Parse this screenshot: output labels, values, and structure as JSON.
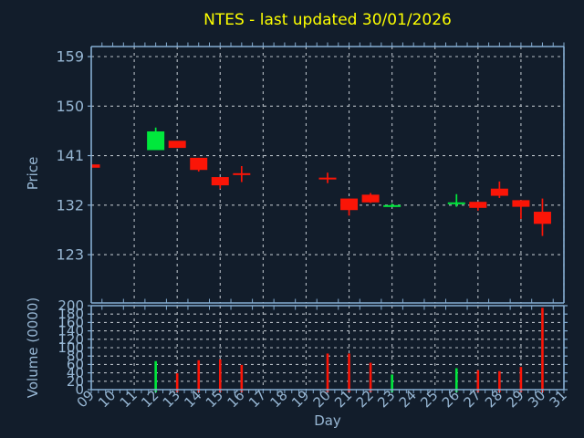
{
  "chart_data": {
    "type": "candlestick",
    "title": "NTES - last updated 30/01/2026",
    "xlabel": "Day",
    "ylabel_price": "Price",
    "ylabel_volume": "Volume (0000)",
    "x_tick_labels": [
      "09",
      "10",
      "11",
      "12",
      "13",
      "14",
      "15",
      "16",
      "17",
      "18",
      "19",
      "20",
      "21",
      "22",
      "23",
      "24",
      "25",
      "26",
      "27",
      "28",
      "29",
      "30",
      "31"
    ],
    "x_range_days": [
      9,
      31
    ],
    "x_gridline_days": [
      11,
      13,
      15,
      17,
      19,
      21,
      23,
      25,
      27,
      29,
      31
    ],
    "price_ticks": [
      123,
      132,
      141,
      150,
      159
    ],
    "price_ylim": [
      114.3,
      160.8
    ],
    "volume_ticks": [
      0,
      20,
      40,
      60,
      80,
      100,
      120,
      140,
      160,
      180,
      200
    ],
    "volume_ylim": [
      0,
      200
    ],
    "grid": "dashed",
    "legend": "none",
    "series": [
      {
        "day": 9,
        "open": 139.4,
        "high": 139.4,
        "low": 138.8,
        "close": 138.8,
        "volume": 0,
        "color": "down"
      },
      {
        "day": 12,
        "open": 142.0,
        "high": 146.1,
        "low": 142.0,
        "close": 145.4,
        "volume": 68,
        "color": "up"
      },
      {
        "day": 13,
        "open": 143.7,
        "high": 143.7,
        "low": 142.4,
        "close": 142.4,
        "volume": 39,
        "color": "down"
      },
      {
        "day": 14,
        "open": 140.6,
        "high": 140.6,
        "low": 138.1,
        "close": 138.4,
        "volume": 70,
        "color": "down"
      },
      {
        "day": 15,
        "open": 137.1,
        "high": 137.1,
        "low": 135.0,
        "close": 135.6,
        "volume": 72,
        "color": "down"
      },
      {
        "day": 16,
        "open": 137.8,
        "high": 139.1,
        "low": 136.2,
        "close": 137.6,
        "volume": 59,
        "color": "down"
      },
      {
        "day": 20,
        "open": 137.0,
        "high": 137.9,
        "low": 136.0,
        "close": 136.9,
        "volume": 86,
        "color": "down"
      },
      {
        "day": 21,
        "open": 133.2,
        "high": 133.2,
        "low": 130.1,
        "close": 131.1,
        "volume": 86,
        "color": "down"
      },
      {
        "day": 22,
        "open": 133.9,
        "high": 134.2,
        "low": 132.4,
        "close": 132.5,
        "volume": 64,
        "color": "down"
      },
      {
        "day": 23,
        "open": 132.0,
        "high": 132.3,
        "low": 131.7,
        "close": 132.0,
        "volume": 36,
        "color": "up"
      },
      {
        "day": 26,
        "open": 132.4,
        "high": 134.0,
        "low": 131.7,
        "close": 132.5,
        "volume": 51,
        "color": "up"
      },
      {
        "day": 27,
        "open": 132.6,
        "high": 132.6,
        "low": 131.0,
        "close": 131.5,
        "volume": 46,
        "color": "down"
      },
      {
        "day": 28,
        "open": 135.0,
        "high": 136.3,
        "low": 133.3,
        "close": 133.7,
        "volume": 44,
        "color": "down"
      },
      {
        "day": 29,
        "open": 132.9,
        "high": 132.9,
        "low": 129.5,
        "close": 131.7,
        "volume": 54,
        "color": "down"
      },
      {
        "day": 30,
        "open": 130.8,
        "high": 133.2,
        "low": 126.4,
        "close": 128.6,
        "volume": 195,
        "color": "down"
      }
    ],
    "colors": {
      "background": "#121d2b",
      "up": "#00e83c",
      "down": "#fb1507",
      "grid": "#b6bdc4",
      "spine": "#85add2",
      "tick_text": "#97b7d4",
      "title": "#fdff00"
    }
  }
}
